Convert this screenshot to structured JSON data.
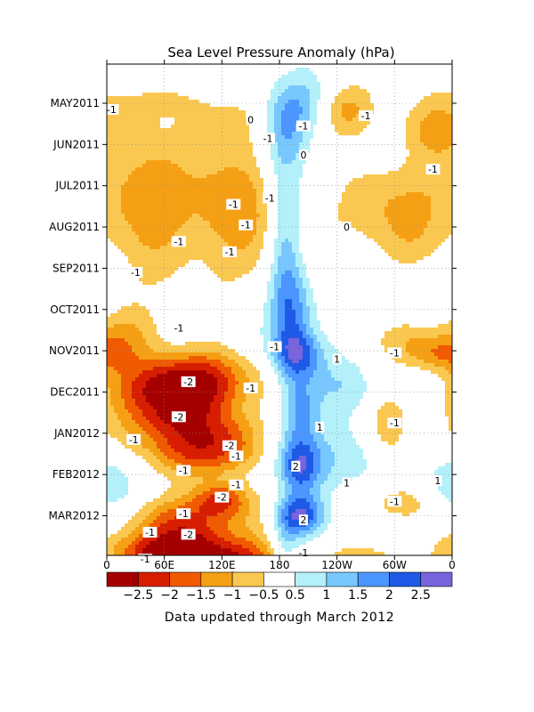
{
  "chart_data": {
    "type": "heatmap",
    "title": "Sea Level Pressure Anomaly (hPa)",
    "footer": "Data updated through March 2012",
    "y_tick_labels": [
      "MAY2011",
      "JUN2011",
      "JUL2011",
      "AUG2011",
      "SEP2011",
      "OCT2011",
      "NOV2011",
      "DEC2011",
      "JAN2012",
      "FEB2012",
      "MAR2012"
    ],
    "x_tick_labels": [
      "0",
      "60E",
      "120E",
      "180",
      "120W",
      "60W",
      "0"
    ],
    "colorbar": {
      "levels": [
        "−2.5",
        "−2",
        "−1.5",
        "−1",
        "−0.5",
        "0.5",
        "1",
        "1.5",
        "2",
        "2.5"
      ],
      "colors": [
        "#a50000",
        "#d71e00",
        "#f05a00",
        "#f5a014",
        "#fac850",
        "#ffffff",
        "#b4f0fa",
        "#78c8ff",
        "#4b96ff",
        "#1e5ae6",
        "#7864dc"
      ]
    },
    "contour_labels": [
      {
        "text": "-1",
        "lon": 5,
        "month": 0.15
      },
      {
        "text": "0",
        "lon": 150,
        "month": 0.4
      },
      {
        "text": "-1",
        "lon": 168,
        "month": 0.85
      },
      {
        "text": "-1",
        "lon": 205,
        "month": 0.55
      },
      {
        "text": "-1",
        "lon": 270,
        "month": 0.3
      },
      {
        "text": "0",
        "lon": 205,
        "month": 1.25
      },
      {
        "text": "-1",
        "lon": 340,
        "month": 1.6
      },
      {
        "text": "-1",
        "lon": 170,
        "month": 2.3
      },
      {
        "text": "-1",
        "lon": 132,
        "month": 2.45
      },
      {
        "text": "-1",
        "lon": 145,
        "month": 2.95
      },
      {
        "text": "-1",
        "lon": 75,
        "month": 3.35
      },
      {
        "text": "-1",
        "lon": 128,
        "month": 3.6
      },
      {
        "text": "0",
        "lon": 250,
        "month": 3.0
      },
      {
        "text": "-1",
        "lon": 30,
        "month": 4.1
      },
      {
        "text": "-1",
        "lon": 75,
        "month": 5.45
      },
      {
        "text": "-1",
        "lon": 175,
        "month": 5.9
      },
      {
        "text": "1",
        "lon": 240,
        "month": 6.2
      },
      {
        "text": "-1",
        "lon": 300,
        "month": 6.05
      },
      {
        "text": "-2",
        "lon": 85,
        "month": 6.75
      },
      {
        "text": "-1",
        "lon": 150,
        "month": 6.9
      },
      {
        "text": "-2",
        "lon": 75,
        "month": 7.6
      },
      {
        "text": "1",
        "lon": 222,
        "month": 7.85
      },
      {
        "text": "-1",
        "lon": 300,
        "month": 7.75
      },
      {
        "text": "-2",
        "lon": 128,
        "month": 8.3
      },
      {
        "text": "-1",
        "lon": 28,
        "month": 8.15
      },
      {
        "text": "-1",
        "lon": 135,
        "month": 8.55
      },
      {
        "text": "-1",
        "lon": 80,
        "month": 8.9
      },
      {
        "text": "2",
        "lon": 197,
        "month": 8.8
      },
      {
        "text": "1",
        "lon": 250,
        "month": 9.2
      },
      {
        "text": "1",
        "lon": 345,
        "month": 9.15
      },
      {
        "text": "-1",
        "lon": 135,
        "month": 9.25
      },
      {
        "text": "-2",
        "lon": 120,
        "month": 9.55
      },
      {
        "text": "-1",
        "lon": 300,
        "month": 9.65
      },
      {
        "text": "-1",
        "lon": 80,
        "month": 9.95
      },
      {
        "text": "2",
        "lon": 205,
        "month": 10.1
      },
      {
        "text": "-1",
        "lon": 45,
        "month": 10.4
      },
      {
        "text": "-2",
        "lon": 85,
        "month": 10.45
      },
      {
        "text": "-1",
        "lon": 40,
        "month": 11.05
      },
      {
        "text": "-1",
        "lon": 205,
        "month": 10.9
      },
      {
        "text": "-2",
        "lon": 130,
        "month": 11.45
      },
      {
        "text": "-1",
        "lon": 168,
        "month": 11.5
      }
    ]
  }
}
